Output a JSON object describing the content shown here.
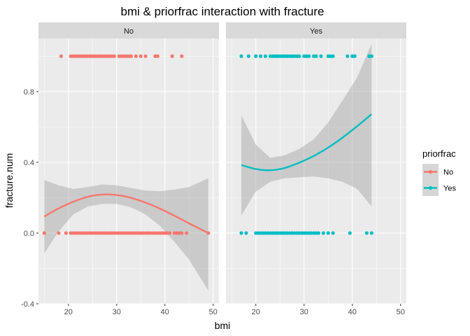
{
  "chart_data": {
    "type": "scatter",
    "title": "bmi & priorfrac  interaction with fracture",
    "xlabel": "bmi",
    "ylabel": "fracture.num",
    "xlim": [
      13.8,
      51.2
    ],
    "ylim": [
      -0.4,
      1.1
    ],
    "x_ticks": [
      20,
      30,
      40,
      50
    ],
    "y_ticks": [
      -0.4,
      0.0,
      0.4,
      0.8
    ],
    "y_tick_labels": [
      "-0.4",
      "0.0",
      "0.4",
      "0.8"
    ],
    "grid": true,
    "legend": {
      "title": "priorfrac",
      "position": "right",
      "entries": [
        {
          "label": "No",
          "color": "#F8766D"
        },
        {
          "label": "Yes",
          "color": "#00BFC4"
        }
      ]
    },
    "panels": [
      {
        "strip": "No",
        "color": "#F8766D",
        "points_y1": [
          18.5,
          20.5,
          21.0,
          21.5,
          22.0,
          22.5,
          23.0,
          23.5,
          24.0,
          24.5,
          25.0,
          25.5,
          26.0,
          26.5,
          27.0,
          27.5,
          28.0,
          28.5,
          29.0,
          29.5,
          30.5,
          31.0,
          31.5,
          32.0,
          32.5,
          33.0,
          34.0,
          35.0,
          36.0,
          38.0,
          38.5,
          41.5,
          43.5
        ],
        "points_y0": [
          15.0,
          18.0,
          19.5,
          20.5,
          21.0,
          21.5,
          22.0,
          22.5,
          23.0,
          23.5,
          24.0,
          24.5,
          25.0,
          25.5,
          26.0,
          26.5,
          27.0,
          27.5,
          28.0,
          28.5,
          29.0,
          29.5,
          30.0,
          30.5,
          31.0,
          31.5,
          32.0,
          32.5,
          33.0,
          33.5,
          34.0,
          34.5,
          35.0,
          35.5,
          36.0,
          36.5,
          37.0,
          37.5,
          38.0,
          38.5,
          39.0,
          39.5,
          40.0,
          40.5,
          41.0,
          42.0,
          42.5,
          43.0,
          43.5,
          44.5,
          49.0
        ],
        "smooth": {
          "x": [
            15,
            18,
            21,
            24,
            27,
            30,
            33,
            36,
            39,
            42,
            45,
            49
          ],
          "y": [
            0.093,
            0.14,
            0.177,
            0.205,
            0.218,
            0.215,
            0.199,
            0.172,
            0.138,
            0.098,
            0.055,
            0.0
          ],
          "lower": [
            -0.115,
            0.01,
            0.105,
            0.15,
            0.165,
            0.165,
            0.145,
            0.105,
            0.04,
            -0.05,
            -0.15,
            -0.325
          ],
          "upper": [
            0.3,
            0.27,
            0.249,
            0.26,
            0.275,
            0.27,
            0.255,
            0.24,
            0.236,
            0.246,
            0.26,
            0.31
          ]
        }
      },
      {
        "strip": "Yes",
        "color": "#00BFC4",
        "points_y1": [
          17.0,
          18.5,
          20.0,
          21.0,
          22.0,
          23.0,
          23.5,
          24.0,
          24.5,
          25.0,
          25.5,
          26.0,
          26.5,
          27.0,
          27.5,
          28.0,
          28.5,
          29.0,
          30.0,
          30.5,
          31.0,
          32.0,
          32.5,
          33.5,
          35.0,
          35.5,
          36.0,
          39.0,
          40.0,
          40.5,
          43.5,
          44.0
        ],
        "points_y0": [
          17.0,
          18.0,
          20.0,
          20.5,
          21.0,
          21.5,
          22.0,
          22.5,
          23.0,
          23.5,
          24.0,
          24.5,
          25.0,
          25.5,
          26.0,
          26.5,
          27.0,
          27.5,
          28.0,
          28.5,
          29.0,
          29.5,
          30.0,
          30.5,
          31.0,
          31.5,
          32.0,
          32.5,
          33.0,
          34.0,
          35.0,
          36.0,
          39.5,
          43.0,
          44.0
        ],
        "smooth": {
          "x": [
            17,
            20,
            23,
            26,
            29,
            32,
            35,
            38,
            41,
            44
          ],
          "y": [
            0.384,
            0.362,
            0.355,
            0.368,
            0.398,
            0.436,
            0.483,
            0.54,
            0.604,
            0.672
          ],
          "lower": [
            0.1,
            0.235,
            0.29,
            0.31,
            0.315,
            0.32,
            0.31,
            0.29,
            0.25,
            0.15
          ],
          "upper": [
            0.665,
            0.5,
            0.425,
            0.44,
            0.475,
            0.53,
            0.625,
            0.75,
            0.88,
            1.07
          ]
        }
      }
    ]
  }
}
